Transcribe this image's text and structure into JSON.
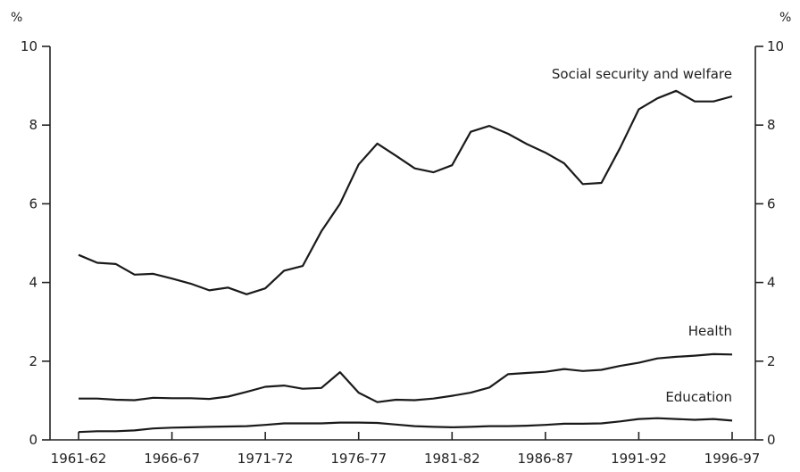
{
  "chart_data": {
    "type": "line",
    "title": "",
    "xlabel": "",
    "ylabel": "%",
    "ylabel_right": "%",
    "ylim": [
      0,
      10
    ],
    "yticks": [
      0,
      2,
      4,
      6,
      8,
      10
    ],
    "x_start_year": 1961,
    "x_tick_labels": [
      "1961-62",
      "1966-67",
      "1971-72",
      "1976-77",
      "1981-82",
      "1986-87",
      "1991-92",
      "1996-97"
    ],
    "grid": false,
    "legend": "inline labels",
    "series": [
      {
        "name": "Social security and welfare",
        "values": [
          4.7,
          4.5,
          4.47,
          4.2,
          4.22,
          4.1,
          3.97,
          3.8,
          3.87,
          3.7,
          3.85,
          4.3,
          4.42,
          5.3,
          6.0,
          7.0,
          7.53,
          7.22,
          6.9,
          6.8,
          6.98,
          7.83,
          7.98,
          7.78,
          7.52,
          7.3,
          7.03,
          6.5,
          6.53,
          7.42,
          8.4,
          8.68,
          8.87,
          8.6,
          8.6,
          8.73
        ]
      },
      {
        "name": "Health",
        "values": [
          1.05,
          1.05,
          1.02,
          1.01,
          1.07,
          1.06,
          1.06,
          1.04,
          1.1,
          1.22,
          1.35,
          1.38,
          1.3,
          1.32,
          1.72,
          1.2,
          0.96,
          1.02,
          1.01,
          1.05,
          1.12,
          1.2,
          1.33,
          1.67,
          1.7,
          1.73,
          1.8,
          1.75,
          1.78,
          1.88,
          1.96,
          2.07,
          2.11,
          2.14,
          2.18,
          2.17
        ]
      },
      {
        "name": "Education",
        "values": [
          0.2,
          0.22,
          0.22,
          0.24,
          0.29,
          0.31,
          0.32,
          0.33,
          0.34,
          0.35,
          0.38,
          0.42,
          0.42,
          0.42,
          0.44,
          0.44,
          0.43,
          0.39,
          0.35,
          0.33,
          0.32,
          0.33,
          0.35,
          0.35,
          0.36,
          0.38,
          0.41,
          0.41,
          0.42,
          0.47,
          0.53,
          0.55,
          0.53,
          0.51,
          0.53,
          0.49
        ]
      }
    ]
  }
}
